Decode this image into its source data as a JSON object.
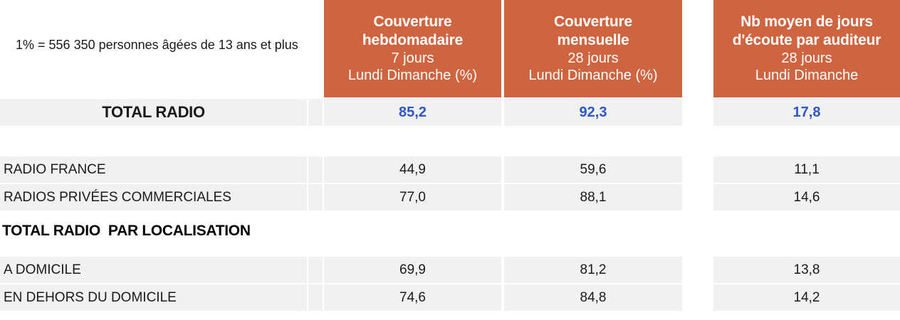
{
  "note": "1% = 556 350 personnes âgées de 13 ans et plus",
  "colors": {
    "header_orange": "#CF6540",
    "total_value_blue": "#2F56C9",
    "row_gray": "#F1F1F1"
  },
  "columns": [
    {
      "title_line1": "Couverture",
      "title_line2": "hebdomadaire",
      "period": "7 jours",
      "days": "Lundi Dimanche (%)"
    },
    {
      "title_line1": "Couverture",
      "title_line2": "mensuelle",
      "period": "28 jours",
      "days": "Lundi Dimanche (%)"
    },
    {
      "title_line1": "Nb moyen de jours",
      "title_line2": "d'écoute par auditeur",
      "period": "28 jours",
      "days": "Lundi Dimanche"
    }
  ],
  "total_row": {
    "label": "TOTAL RADIO",
    "values": [
      "85,2",
      "92,3",
      "17,8"
    ]
  },
  "station_rows": [
    {
      "label": "RADIO FRANCE",
      "values": [
        "44,9",
        "59,6",
        "11,1"
      ]
    },
    {
      "label": "RADIOS PRIVÉES COMMERCIALES",
      "values": [
        "77,0",
        "88,1",
        "14,6"
      ]
    }
  ],
  "section_title": "TOTAL RADIO  PAR LOCALISATION",
  "location_rows": [
    {
      "label": "A DOMICILE",
      "values": [
        "69,9",
        "81,2",
        "13,8"
      ]
    },
    {
      "label": "EN DEHORS DU DOMICILE",
      "values": [
        "74,6",
        "84,8",
        "14,2"
      ]
    }
  ]
}
